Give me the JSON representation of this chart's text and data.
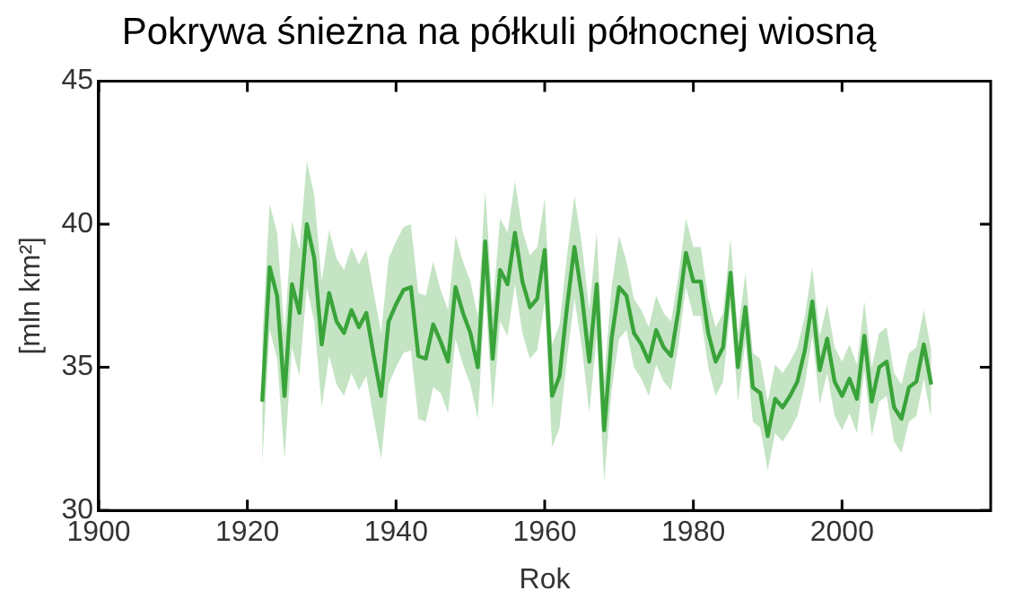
{
  "chart_data": {
    "type": "line",
    "title": "Pokrywa śnieżna na półkuli północnej wiosną",
    "xlabel": "Rok",
    "ylabel": "[mln km²]",
    "x": [
      1922,
      1923,
      1924,
      1925,
      1926,
      1927,
      1928,
      1929,
      1930,
      1931,
      1932,
      1933,
      1934,
      1935,
      1936,
      1937,
      1938,
      1939,
      1940,
      1941,
      1942,
      1943,
      1944,
      1945,
      1946,
      1947,
      1948,
      1949,
      1950,
      1951,
      1952,
      1953,
      1954,
      1955,
      1956,
      1957,
      1958,
      1959,
      1960,
      1961,
      1962,
      1963,
      1964,
      1965,
      1966,
      1967,
      1968,
      1969,
      1970,
      1971,
      1972,
      1973,
      1974,
      1975,
      1976,
      1977,
      1978,
      1979,
      1980,
      1981,
      1982,
      1983,
      1984,
      1985,
      1986,
      1987,
      1988,
      1989,
      1990,
      1991,
      1992,
      1993,
      1994,
      1995,
      1996,
      1997,
      1998,
      1999,
      2000,
      2001,
      2002,
      2003,
      2004,
      2005,
      2006,
      2007,
      2008,
      2009,
      2010,
      2011,
      2012
    ],
    "series": [
      {
        "color": "#3aa43a",
        "values": [
          33.8,
          38.5,
          37.5,
          34.0,
          37.9,
          36.9,
          40.0,
          38.8,
          35.8,
          37.6,
          36.6,
          36.2,
          37.0,
          36.4,
          36.9,
          35.4,
          34.0,
          36.6,
          37.2,
          37.7,
          37.8,
          35.4,
          35.3,
          36.5,
          35.9,
          35.2,
          37.8,
          36.9,
          36.2,
          35.0,
          39.4,
          35.3,
          38.4,
          37.9,
          39.7,
          38.0,
          37.1,
          37.4,
          39.1,
          34.0,
          34.7,
          37.1,
          39.2,
          37.5,
          35.2,
          37.9,
          32.8,
          36.0,
          37.8,
          37.5,
          36.2,
          35.8,
          35.2,
          36.3,
          35.7,
          35.4,
          37.0,
          39.0,
          38.0,
          38.0,
          36.2,
          35.2,
          35.7,
          38.3,
          35.0,
          37.1,
          34.3,
          34.1,
          32.6,
          33.9,
          33.6,
          34.0,
          34.5,
          35.6,
          37.3,
          34.9,
          36.0,
          34.5,
          34.0,
          34.6,
          33.9,
          36.1,
          33.8,
          35.0,
          35.2,
          33.6,
          33.2,
          34.3,
          34.5,
          35.8,
          34.4
        ],
        "upper": [
          36.0,
          40.7,
          39.7,
          36.2,
          40.1,
          39.1,
          42.2,
          41.0,
          38.0,
          39.8,
          38.8,
          38.4,
          39.2,
          38.6,
          39.1,
          37.6,
          36.2,
          38.8,
          39.4,
          39.9,
          40.0,
          37.6,
          37.5,
          38.7,
          37.7,
          37.0,
          39.6,
          38.7,
          38.0,
          36.8,
          41.2,
          37.1,
          40.2,
          39.7,
          41.5,
          39.8,
          38.9,
          39.2,
          40.9,
          35.8,
          36.5,
          38.9,
          41.0,
          39.3,
          37.0,
          39.7,
          34.6,
          37.8,
          39.6,
          38.7,
          37.4,
          37.0,
          36.4,
          37.5,
          36.9,
          36.6,
          38.2,
          40.2,
          39.2,
          39.2,
          37.4,
          36.4,
          36.9,
          39.5,
          36.2,
          38.3,
          35.5,
          35.3,
          33.8,
          35.1,
          34.8,
          35.2,
          35.7,
          36.8,
          38.5,
          36.1,
          37.2,
          35.7,
          35.2,
          35.8,
          35.1,
          37.3,
          35.0,
          36.2,
          36.4,
          34.8,
          34.4,
          35.5,
          35.7,
          37.0,
          35.6
        ],
        "lower": [
          31.6,
          36.3,
          35.3,
          31.8,
          35.7,
          34.7,
          37.8,
          36.6,
          33.6,
          35.4,
          34.4,
          34.0,
          34.8,
          34.2,
          34.7,
          33.2,
          31.8,
          34.4,
          35.0,
          35.5,
          35.6,
          33.2,
          33.1,
          34.3,
          34.1,
          33.4,
          36.0,
          35.1,
          34.4,
          33.2,
          37.6,
          33.5,
          36.6,
          36.1,
          37.9,
          36.2,
          35.3,
          35.6,
          37.3,
          32.2,
          32.9,
          35.3,
          37.4,
          35.7,
          33.4,
          36.1,
          31.0,
          34.2,
          36.0,
          36.3,
          35.0,
          34.6,
          34.0,
          35.1,
          34.5,
          34.2,
          35.8,
          37.8,
          36.8,
          36.8,
          35.0,
          34.0,
          34.5,
          37.1,
          33.8,
          35.9,
          33.1,
          32.9,
          31.4,
          32.7,
          32.4,
          32.8,
          33.3,
          34.4,
          36.1,
          33.7,
          34.8,
          33.3,
          32.8,
          33.4,
          32.7,
          34.9,
          32.6,
          33.8,
          34.0,
          32.4,
          32.0,
          33.1,
          33.3,
          34.6,
          33.2
        ]
      }
    ],
    "xlim": [
      1900,
      2020
    ],
    "xticks": [
      1900,
      1920,
      1940,
      1960,
      1980,
      2000
    ],
    "ylim": [
      30,
      45
    ],
    "yticks": [
      30,
      35,
      40,
      45
    ],
    "grid": false,
    "legend": false,
    "marker": "none",
    "line_style": "solid"
  }
}
